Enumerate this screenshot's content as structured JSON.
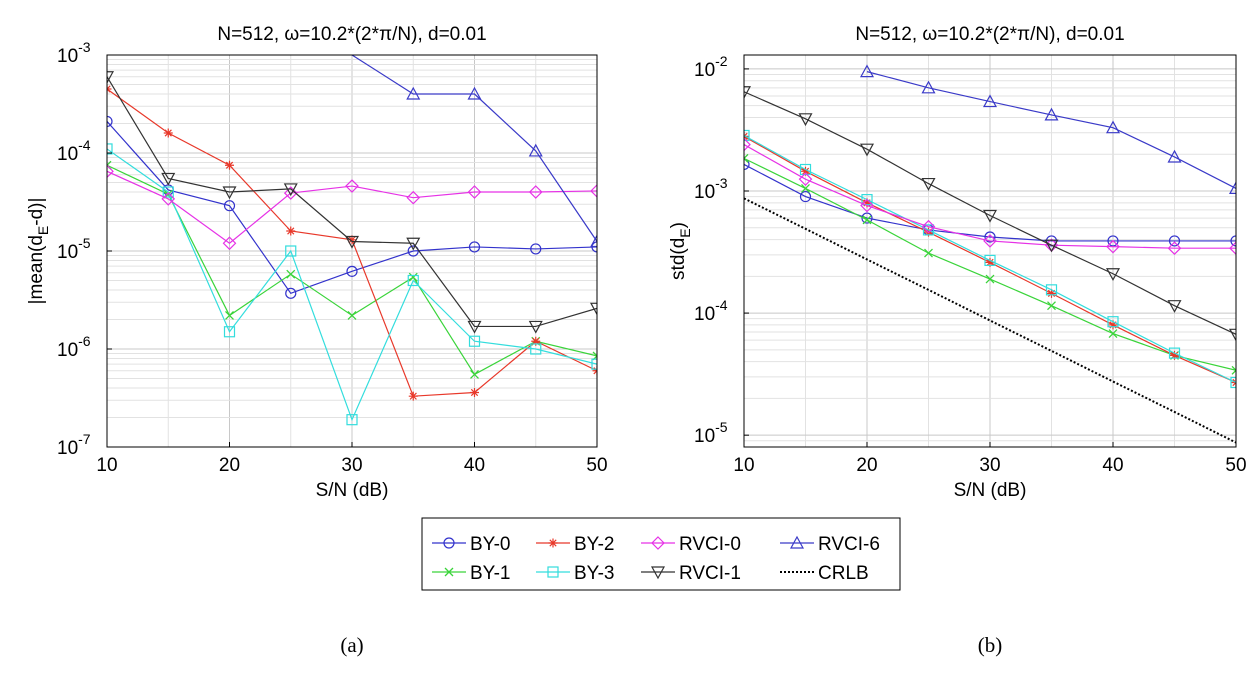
{
  "chart_data": [
    {
      "type": "line",
      "title": "N=512, ω=10.2*(2*π/N), d=0.01",
      "xlabel": "S/N (dB)",
      "ylabel": "|mean(d_E-d)|",
      "xlim": [
        10,
        50
      ],
      "ylim": [
        1e-07,
        0.001
      ],
      "yscale": "log",
      "xticks": [
        "10",
        "20",
        "30",
        "40",
        "50"
      ],
      "yticks": [
        {
          "base": "10",
          "exp": "-7"
        },
        {
          "base": "10",
          "exp": "-6"
        },
        {
          "base": "10",
          "exp": "-5"
        },
        {
          "base": "10",
          "exp": "-4"
        },
        {
          "base": "10",
          "exp": "-3"
        }
      ],
      "grid": true,
      "caption": "(a)",
      "x": [
        10,
        15,
        20,
        25,
        30,
        35,
        40,
        45,
        50
      ],
      "series": [
        {
          "name": "BY-0",
          "values": [
            0.00021,
            4.2e-05,
            2.9e-05,
            3.7e-06,
            6.2e-06,
            1e-05,
            1.1e-05,
            1.05e-05,
            1.1e-05
          ]
        },
        {
          "name": "BY-1",
          "values": [
            7.5e-05,
            3.8e-05,
            2.2e-06,
            5.8e-06,
            2.2e-06,
            5.4e-06,
            5.5e-07,
            1.2e-06,
            8.5e-07
          ]
        },
        {
          "name": "BY-2",
          "values": [
            0.00045,
            0.00016,
            7.5e-05,
            1.6e-05,
            1.3e-05,
            3.3e-07,
            3.6e-07,
            1.2e-06,
            6e-07
          ]
        },
        {
          "name": "BY-3",
          "values": [
            0.00011,
            4e-05,
            1.5e-06,
            1e-05,
            1.9e-07,
            5e-06,
            1.2e-06,
            1e-06,
            7e-07
          ]
        },
        {
          "name": "RVCI-0",
          "values": [
            6.5e-05,
            3.4e-05,
            1.2e-05,
            3.9e-05,
            4.6e-05,
            3.5e-05,
            4e-05,
            4e-05,
            4.1e-05
          ]
        },
        {
          "name": "RVCI-1",
          "values": [
            0.0006,
            5.5e-05,
            4e-05,
            4.3e-05,
            1.25e-05,
            1.2e-05,
            1.7e-06,
            1.7e-06,
            2.6e-06
          ]
        },
        {
          "name": "RVCI-6",
          "values": [
            null,
            null,
            null,
            null,
            0.001,
            0.0004,
            0.0004,
            0.000105,
            1.25e-05
          ]
        }
      ]
    },
    {
      "type": "line",
      "title": "N=512, ω=10.2*(2*π/N), d=0.01",
      "xlabel": "S/N (dB)",
      "ylabel": "std(d_E)",
      "xlim": [
        10,
        50
      ],
      "ylim": [
        8e-06,
        0.013
      ],
      "yscale": "log",
      "xticks": [
        "10",
        "20",
        "30",
        "40",
        "50"
      ],
      "yticks": [
        {
          "base": "10",
          "exp": "-5"
        },
        {
          "base": "10",
          "exp": "-4"
        },
        {
          "base": "10",
          "exp": "-3"
        },
        {
          "base": "10",
          "exp": "-2"
        }
      ],
      "grid": true,
      "caption": "(b)",
      "x": [
        10,
        15,
        20,
        25,
        30,
        35,
        40,
        45,
        50
      ],
      "series": [
        {
          "name": "BY-0",
          "values": [
            0.00165,
            0.0009,
            0.0006,
            0.00048,
            0.00042,
            0.00039,
            0.00039,
            0.00039,
            0.00039
          ]
        },
        {
          "name": "BY-1",
          "values": [
            0.00185,
            0.00105,
            0.00058,
            0.00031,
            0.00019,
            0.000115,
            6.8e-05,
            4.5e-05,
            3.4e-05
          ]
        },
        {
          "name": "BY-2",
          "values": [
            0.0028,
            0.00145,
            0.0008,
            0.00046,
            0.00026,
            0.000145,
            8e-05,
            4.5e-05,
            2.7e-05
          ]
        },
        {
          "name": "BY-3",
          "values": [
            0.00285,
            0.0015,
            0.00085,
            0.00048,
            0.00027,
            0.000155,
            8.5e-05,
            4.7e-05,
            2.7e-05
          ]
        },
        {
          "name": "RVCI-0",
          "values": [
            0.0024,
            0.00125,
            0.00076,
            0.00051,
            0.00039,
            0.00036,
            0.00035,
            0.00034,
            0.00034
          ]
        },
        {
          "name": "RVCI-1",
          "values": [
            0.0065,
            0.0039,
            0.0022,
            0.00115,
            0.00063,
            0.00036,
            0.00021,
            0.000115,
            6.7e-05
          ]
        },
        {
          "name": "RVCI-6",
          "values": [
            null,
            null,
            0.0095,
            0.007,
            0.0054,
            0.0042,
            0.0033,
            0.0019,
            0.00105
          ]
        },
        {
          "name": "CRLB",
          "values": [
            0.00087,
            0.00049,
            0.000275,
            0.000155,
            8.7e-05,
            4.9e-05,
            2.75e-05,
            1.55e-05,
            8.7e-06
          ]
        }
      ]
    }
  ],
  "legend": {
    "placement": "bottom-center",
    "items": [
      {
        "label": "BY-0",
        "color": "#3333cc",
        "marker": "circle"
      },
      {
        "label": "BY-2",
        "color": "#e8382a",
        "marker": "star"
      },
      {
        "label": "RVCI-0",
        "color": "#e632e6",
        "marker": "diamond"
      },
      {
        "label": "RVCI-6",
        "color": "#3a3ac8",
        "marker": "triangle-up"
      },
      {
        "label": "BY-1",
        "color": "#3ad43a",
        "marker": "x"
      },
      {
        "label": "BY-3",
        "color": "#33dddd",
        "marker": "square"
      },
      {
        "label": "RVCI-1",
        "color": "#333333",
        "marker": "triangle-down"
      },
      {
        "label": "CRLB",
        "color": "#000000",
        "marker": "dotted-line"
      }
    ]
  },
  "series_style": {
    "BY-0": {
      "color": "#3333cc",
      "marker": "circle"
    },
    "BY-1": {
      "color": "#3ad43a",
      "marker": "x"
    },
    "BY-2": {
      "color": "#e8382a",
      "marker": "star"
    },
    "BY-3": {
      "color": "#33dddd",
      "marker": "square"
    },
    "RVCI-0": {
      "color": "#e632e6",
      "marker": "diamond"
    },
    "RVCI-1": {
      "color": "#333333",
      "marker": "triangle-down"
    },
    "RVCI-6": {
      "color": "#3a3ac8",
      "marker": "triangle-up"
    },
    "CRLB": {
      "color": "#000000",
      "marker": "none"
    }
  }
}
